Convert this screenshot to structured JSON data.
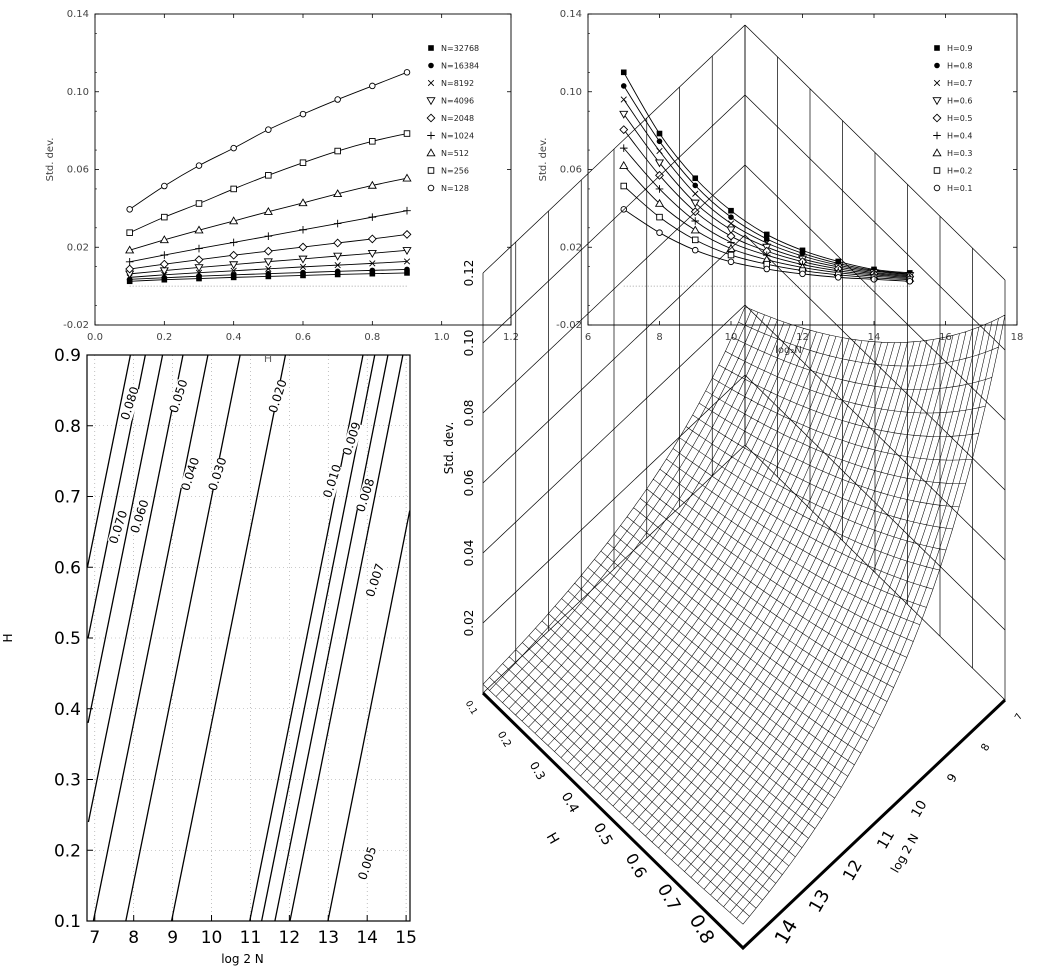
{
  "chart_data": [
    {
      "type": "line",
      "ylabel": "Std. dev.",
      "xlabel": "",
      "xlim": [
        0,
        1.2
      ],
      "ylim": [
        -0.02,
        0.14
      ],
      "xticks": [
        "0.0",
        "0.2",
        "0.4",
        "0.6",
        "0.8",
        "1.0",
        "1.2"
      ],
      "yticks": [
        "-0.02",
        "0.02",
        "0.06",
        "0.10",
        "0.14"
      ],
      "x": [
        0.1,
        0.2,
        0.3,
        0.4,
        0.5,
        0.6,
        0.7,
        0.8,
        0.9
      ],
      "legend_position": "top-right",
      "series": [
        {
          "name": "N=32768",
          "marker": "filled-square",
          "values": [
            0.0025,
            0.0033,
            0.0039,
            0.0045,
            0.005,
            0.0055,
            0.006,
            0.0064,
            0.0068
          ]
        },
        {
          "name": "N=16384",
          "marker": "filled-circle",
          "values": [
            0.0035,
            0.0043,
            0.0051,
            0.0058,
            0.0064,
            0.007,
            0.0076,
            0.0081,
            0.0086
          ]
        },
        {
          "name": "N=8192",
          "marker": "x",
          "values": [
            0.0045,
            0.0058,
            0.0069,
            0.0079,
            0.0089,
            0.0099,
            0.0108,
            0.0117,
            0.0127
          ]
        },
        {
          "name": "N=4096",
          "marker": "triangle-down",
          "values": [
            0.0063,
            0.008,
            0.0096,
            0.0111,
            0.0126,
            0.014,
            0.0155,
            0.0169,
            0.0184
          ]
        },
        {
          "name": "N=2048",
          "marker": "diamond",
          "values": [
            0.0088,
            0.0113,
            0.0136,
            0.0159,
            0.018,
            0.0201,
            0.0222,
            0.0243,
            0.0266
          ]
        },
        {
          "name": "N=1024",
          "marker": "plus",
          "values": [
            0.0125,
            0.016,
            0.0193,
            0.0225,
            0.0257,
            0.029,
            0.0322,
            0.0355,
            0.0388
          ]
        },
        {
          "name": "N=512",
          "marker": "triangle-up",
          "values": [
            0.0185,
            0.0238,
            0.0288,
            0.0335,
            0.0383,
            0.0428,
            0.0475,
            0.0518,
            0.0555
          ]
        },
        {
          "name": "N=256",
          "marker": "open-square",
          "values": [
            0.0275,
            0.0355,
            0.0425,
            0.05,
            0.057,
            0.0635,
            0.0695,
            0.0745,
            0.0785
          ]
        },
        {
          "name": "N=128",
          "marker": "open-circle",
          "values": [
            0.0395,
            0.0515,
            0.062,
            0.071,
            0.0805,
            0.0885,
            0.096,
            0.103,
            0.11
          ]
        }
      ]
    },
    {
      "type": "line",
      "ylabel": "Std. dev.",
      "xlabel": "log₂N",
      "xlim": [
        6,
        18
      ],
      "ylim": [
        -0.02,
        0.14
      ],
      "xticks": [
        "6",
        "8",
        "10",
        "12",
        "14",
        "16",
        "18"
      ],
      "yticks": [
        "-0.02",
        "0.02",
        "0.06",
        "0.10",
        "0.14"
      ],
      "x": [
        7,
        8,
        9,
        10,
        11,
        12,
        13,
        14,
        15
      ],
      "legend_position": "top-right",
      "series": [
        {
          "name": "H=0.9",
          "marker": "filled-square",
          "values": [
            0.11,
            0.0785,
            0.0555,
            0.0388,
            0.0266,
            0.0184,
            0.0127,
            0.0086,
            0.0068
          ]
        },
        {
          "name": "H=0.8",
          "marker": "filled-circle",
          "values": [
            0.103,
            0.0745,
            0.0518,
            0.0355,
            0.0243,
            0.0169,
            0.0117,
            0.0081,
            0.0064
          ]
        },
        {
          "name": "H=0.7",
          "marker": "x",
          "values": [
            0.096,
            0.0695,
            0.0475,
            0.0322,
            0.0222,
            0.0155,
            0.0108,
            0.0076,
            0.006
          ]
        },
        {
          "name": "H=0.6",
          "marker": "triangle-down",
          "values": [
            0.0885,
            0.0635,
            0.0428,
            0.029,
            0.0201,
            0.014,
            0.0099,
            0.007,
            0.0055
          ]
        },
        {
          "name": "H=0.5",
          "marker": "diamond",
          "values": [
            0.0805,
            0.057,
            0.0383,
            0.0257,
            0.018,
            0.0126,
            0.0089,
            0.0064,
            0.005
          ]
        },
        {
          "name": "H=0.4",
          "marker": "plus",
          "values": [
            0.071,
            0.05,
            0.0335,
            0.0225,
            0.0159,
            0.0111,
            0.0079,
            0.0058,
            0.0045
          ]
        },
        {
          "name": "H=0.3",
          "marker": "triangle-up",
          "values": [
            0.062,
            0.0425,
            0.0288,
            0.0193,
            0.0136,
            0.0096,
            0.0069,
            0.0051,
            0.0039
          ]
        },
        {
          "name": "H=0.2",
          "marker": "open-square",
          "values": [
            0.0515,
            0.0355,
            0.0238,
            0.016,
            0.0113,
            0.008,
            0.0058,
            0.0043,
            0.0033
          ]
        },
        {
          "name": "H=0.1",
          "marker": "open-circle",
          "values": [
            0.0395,
            0.0275,
            0.0185,
            0.0125,
            0.0088,
            0.0063,
            0.0045,
            0.0035,
            0.0025
          ]
        }
      ]
    },
    {
      "type": "contour",
      "xlabel": "log 2 N",
      "ylabel": "H",
      "top_label": "H",
      "xlim": [
        6.8,
        15.1
      ],
      "ylim": [
        0.1,
        0.9
      ],
      "xticks": [
        "7",
        "8",
        "9",
        "10",
        "11",
        "12",
        "13",
        "14",
        "15"
      ],
      "yticks": [
        "0.1",
        "0.2",
        "0.3",
        "0.4",
        "0.5",
        "0.6",
        "0.7",
        "0.8",
        "0.9"
      ],
      "grid": true,
      "levels": [
        0.005,
        0.007,
        0.008,
        0.009,
        0.01,
        0.02,
        0.03,
        0.04,
        0.05,
        0.06,
        0.07,
        0.08
      ],
      "labels": [
        "0.080",
        "0.070",
        "0.060",
        "0.050",
        "0.040",
        "0.030",
        "0.020",
        "0.010",
        "0.009",
        "0.008",
        "0.007",
        "0.005"
      ]
    },
    {
      "type": "surface",
      "zlabel": "Std. dev.",
      "xlabel": "H",
      "ylabel": "log 2 N",
      "zticks": [
        "0.02",
        "0.04",
        "0.06",
        "0.08",
        "0.10",
        "0.12"
      ],
      "xticks": [
        "0.1",
        "0.2",
        "0.3",
        "0.4",
        "0.5",
        "0.6",
        "0.7",
        "0.8"
      ],
      "yticks": [
        "7",
        "8",
        "9",
        "10",
        "11",
        "12",
        "13",
        "14"
      ],
      "xrange": [
        0.1,
        0.9
      ],
      "yrange": [
        7,
        15
      ],
      "zrange": [
        0,
        0.12
      ],
      "surface_ranges": {
        "at_H_0.1_N_7": 0.0395,
        "at_H_0.9_N_7": 0.11,
        "at_H_0.9_N_15": 0.0068,
        "at_H_0.1_N_15": 0.0025
      }
    }
  ]
}
